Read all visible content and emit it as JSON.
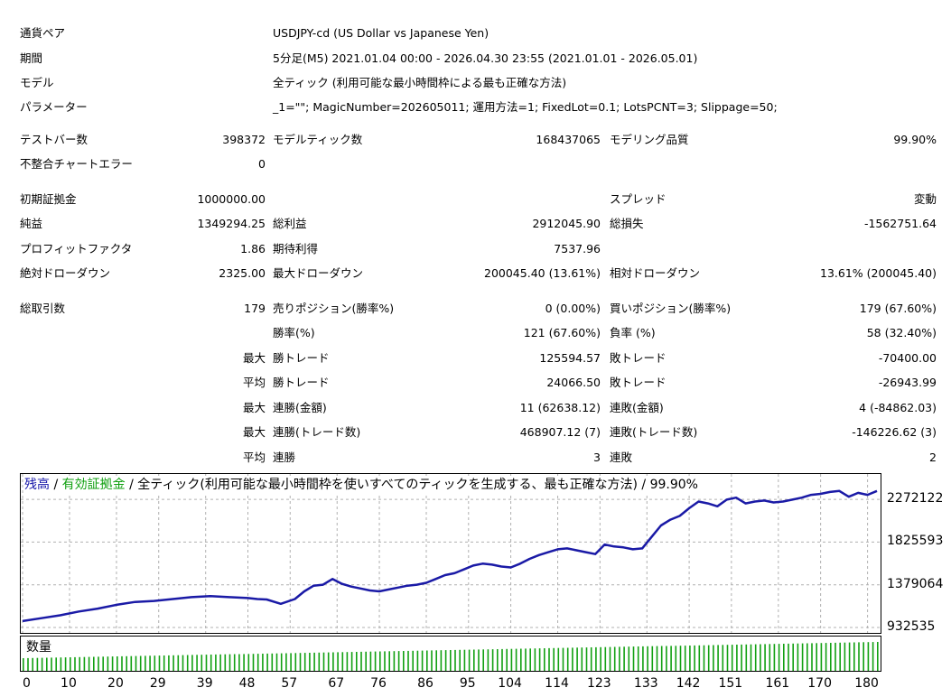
{
  "info": {
    "pair_label": "通貨ペア",
    "pair_value": "USDJPY-cd (US Dollar vs Japanese Yen)",
    "period_label": "期間",
    "period_value": "5分足(M5) 2021.01.04 00:00 - 2026.04.30 23:55 (2021.01.01 - 2026.05.01)",
    "model_label": "モデル",
    "model_value": "全ティック (利用可能な最小時間枠による最も正確な方法)",
    "params_label": "パラメーター",
    "params_value": "_1=\"\"; MagicNumber=202605011; 運用方法=1; FixedLot=0.1; LotsPCNT=3; Slippage=50;"
  },
  "stats": {
    "bars_label": "テストバー数",
    "bars_value": "398372",
    "ticks_label": "モデルティック数",
    "ticks_value": "168437065",
    "quality_label": "モデリング品質",
    "quality_value": "99.90%",
    "mismatch_label": "不整合チャートエラー",
    "mismatch_value": "0",
    "deposit_label": "初期証拠金",
    "deposit_value": "1000000.00",
    "spread_label": "スプレッド",
    "spread_value": "変動",
    "net_label": "純益",
    "net_value": "1349294.25",
    "gross_profit_label": "総利益",
    "gross_profit_value": "2912045.90",
    "gross_loss_label": "総損失",
    "gross_loss_value": "-1562751.64",
    "pf_label": "プロフィットファクタ",
    "pf_value": "1.86",
    "expected_label": "期待利得",
    "expected_value": "7537.96",
    "abs_dd_label": "絶対ドローダウン",
    "abs_dd_value": "2325.00",
    "max_dd_label": "最大ドローダウン",
    "max_dd_value": "200045.40 (13.61%)",
    "rel_dd_label": "相対ドローダウン",
    "rel_dd_value": "13.61% (200045.40)",
    "trades_label": "総取引数",
    "trades_value": "179",
    "short_label": "売りポジション(勝率%)",
    "short_value": "0 (0.00%)",
    "long_label": "買いポジション(勝率%)",
    "long_value": "179 (67.60%)",
    "winrate_label": "勝率(%)",
    "winrate_value": "121 (67.60%)",
    "lossrate_label": "負率 (%)",
    "lossrate_value": "58 (32.40%)",
    "max_label_1": "最大",
    "max_win_label": "勝トレード",
    "max_win_value": "125594.57",
    "max_loss_label": "敗トレード",
    "max_loss_value": "-70400.00",
    "avg_label_1": "平均",
    "avg_win_label": "勝トレード",
    "avg_win_value": "24066.50",
    "avg_loss_label": "敗トレード",
    "avg_loss_value": "-26943.99",
    "max_label_2": "最大",
    "cons_win_amt_label": "連勝(金額)",
    "cons_win_amt_value": "11 (62638.12)",
    "cons_loss_amt_label": "連敗(金額)",
    "cons_loss_amt_value": "4 (-84862.03)",
    "max_label_3": "最大",
    "cons_win_cnt_label": "連勝(トレード数)",
    "cons_win_cnt_value": "468907.12 (7)",
    "cons_loss_cnt_label": "連敗(トレード数)",
    "cons_loss_cnt_value": "-146226.62 (3)",
    "avg_label_2": "平均",
    "avg_cons_win_label": "連勝",
    "avg_cons_win_value": "3",
    "avg_cons_loss_label": "連敗",
    "avg_cons_loss_value": "2"
  },
  "legend": {
    "balance": "残高",
    "sep1": " / ",
    "equity": "有効証拠金",
    "sep2": " / ",
    "rest": "全ティック(利用可能な最小時間枠を使いすべてのティックを生成する、最も正確な方法) / 99.90%"
  },
  "volume_label": "数量",
  "colors": {
    "balance": "#1a1aa6",
    "equity": "#11a011",
    "grid": "#b0b0b0"
  },
  "chart_data": {
    "type": "line",
    "series": [
      {
        "name": "残高",
        "x": [
          0,
          4,
          8,
          12,
          16,
          20,
          24,
          28,
          32,
          36,
          40,
          44,
          48,
          50,
          52,
          55,
          58,
          60,
          62,
          64,
          66,
          68,
          70,
          72,
          74,
          76,
          78,
          80,
          82,
          84,
          86,
          88,
          90,
          92,
          94,
          96,
          98,
          100,
          102,
          104,
          106,
          108,
          110,
          112,
          114,
          116,
          118,
          120,
          122,
          124,
          126,
          128,
          130,
          132,
          134,
          136,
          138,
          140,
          142,
          144,
          146,
          148,
          150,
          152,
          154,
          156,
          158,
          160,
          162,
          164,
          166,
          168,
          170,
          172,
          174,
          176,
          178,
          180,
          182
        ],
        "y": [
          1000000,
          1030000,
          1060000,
          1100000,
          1130000,
          1170000,
          1200000,
          1210000,
          1230000,
          1250000,
          1260000,
          1250000,
          1240000,
          1230000,
          1225000,
          1180000,
          1230000,
          1310000,
          1370000,
          1380000,
          1440000,
          1390000,
          1360000,
          1340000,
          1320000,
          1310000,
          1330000,
          1350000,
          1370000,
          1380000,
          1400000,
          1440000,
          1480000,
          1500000,
          1540000,
          1580000,
          1600000,
          1590000,
          1570000,
          1560000,
          1600000,
          1650000,
          1690000,
          1720000,
          1750000,
          1760000,
          1740000,
          1720000,
          1700000,
          1800000,
          1780000,
          1770000,
          1750000,
          1760000,
          1880000,
          2000000,
          2060000,
          2100000,
          2180000,
          2250000,
          2230000,
          2200000,
          2270000,
          2290000,
          2230000,
          2250000,
          2260000,
          2240000,
          2250000,
          2270000,
          2290000,
          2320000,
          2330000,
          2350000,
          2360000,
          2300000,
          2340000,
          2320000,
          2360000
        ]
      }
    ],
    "y_ticks": [
      "2272122",
      "1825593",
      "1379064",
      "932535"
    ],
    "y_tick_values": [
      2272122,
      1825593,
      1379064,
      932535
    ],
    "x_ticks": [
      "0",
      "10",
      "20",
      "29",
      "39",
      "48",
      "57",
      "67",
      "76",
      "86",
      "95",
      "104",
      "114",
      "123",
      "133",
      "142",
      "151",
      "161",
      "170",
      "180"
    ],
    "x_tick_values": [
      0,
      10,
      20,
      29,
      39,
      48,
      57,
      67,
      76,
      86,
      95,
      104,
      114,
      123,
      133,
      142,
      151,
      161,
      170,
      180
    ],
    "xlim": [
      0,
      182
    ],
    "ylim": [
      932535,
      2500000
    ],
    "grid": true
  }
}
